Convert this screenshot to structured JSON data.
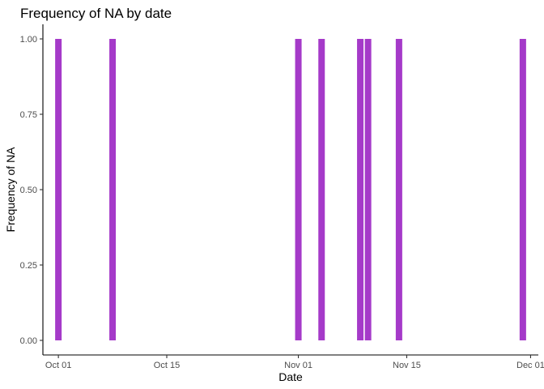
{
  "chart_data": {
    "type": "bar",
    "title": "Frequency of NA by date",
    "xlabel": "Date",
    "ylabel": "Frequency of NA",
    "x_ticks": [
      "Oct 01",
      "Oct 15",
      "Nov 01",
      "Nov 15",
      "Dec 01"
    ],
    "y_ticks": [
      "0.00",
      "0.25",
      "0.50",
      "0.75",
      "1.00"
    ],
    "xlim": [
      "2021-09-29",
      "2021-12-02"
    ],
    "ylim": [
      0,
      1
    ],
    "bar_color": "#a53ac9",
    "grid": false,
    "points": [
      {
        "x": "2021-10-01",
        "y": 1
      },
      {
        "x": "2021-10-08",
        "y": 1
      },
      {
        "x": "2021-11-01",
        "y": 1
      },
      {
        "x": "2021-11-04",
        "y": 1
      },
      {
        "x": "2021-11-09",
        "y": 1
      },
      {
        "x": "2021-11-10",
        "y": 1
      },
      {
        "x": "2021-11-14",
        "y": 1
      },
      {
        "x": "2021-11-30",
        "y": 1
      }
    ]
  }
}
